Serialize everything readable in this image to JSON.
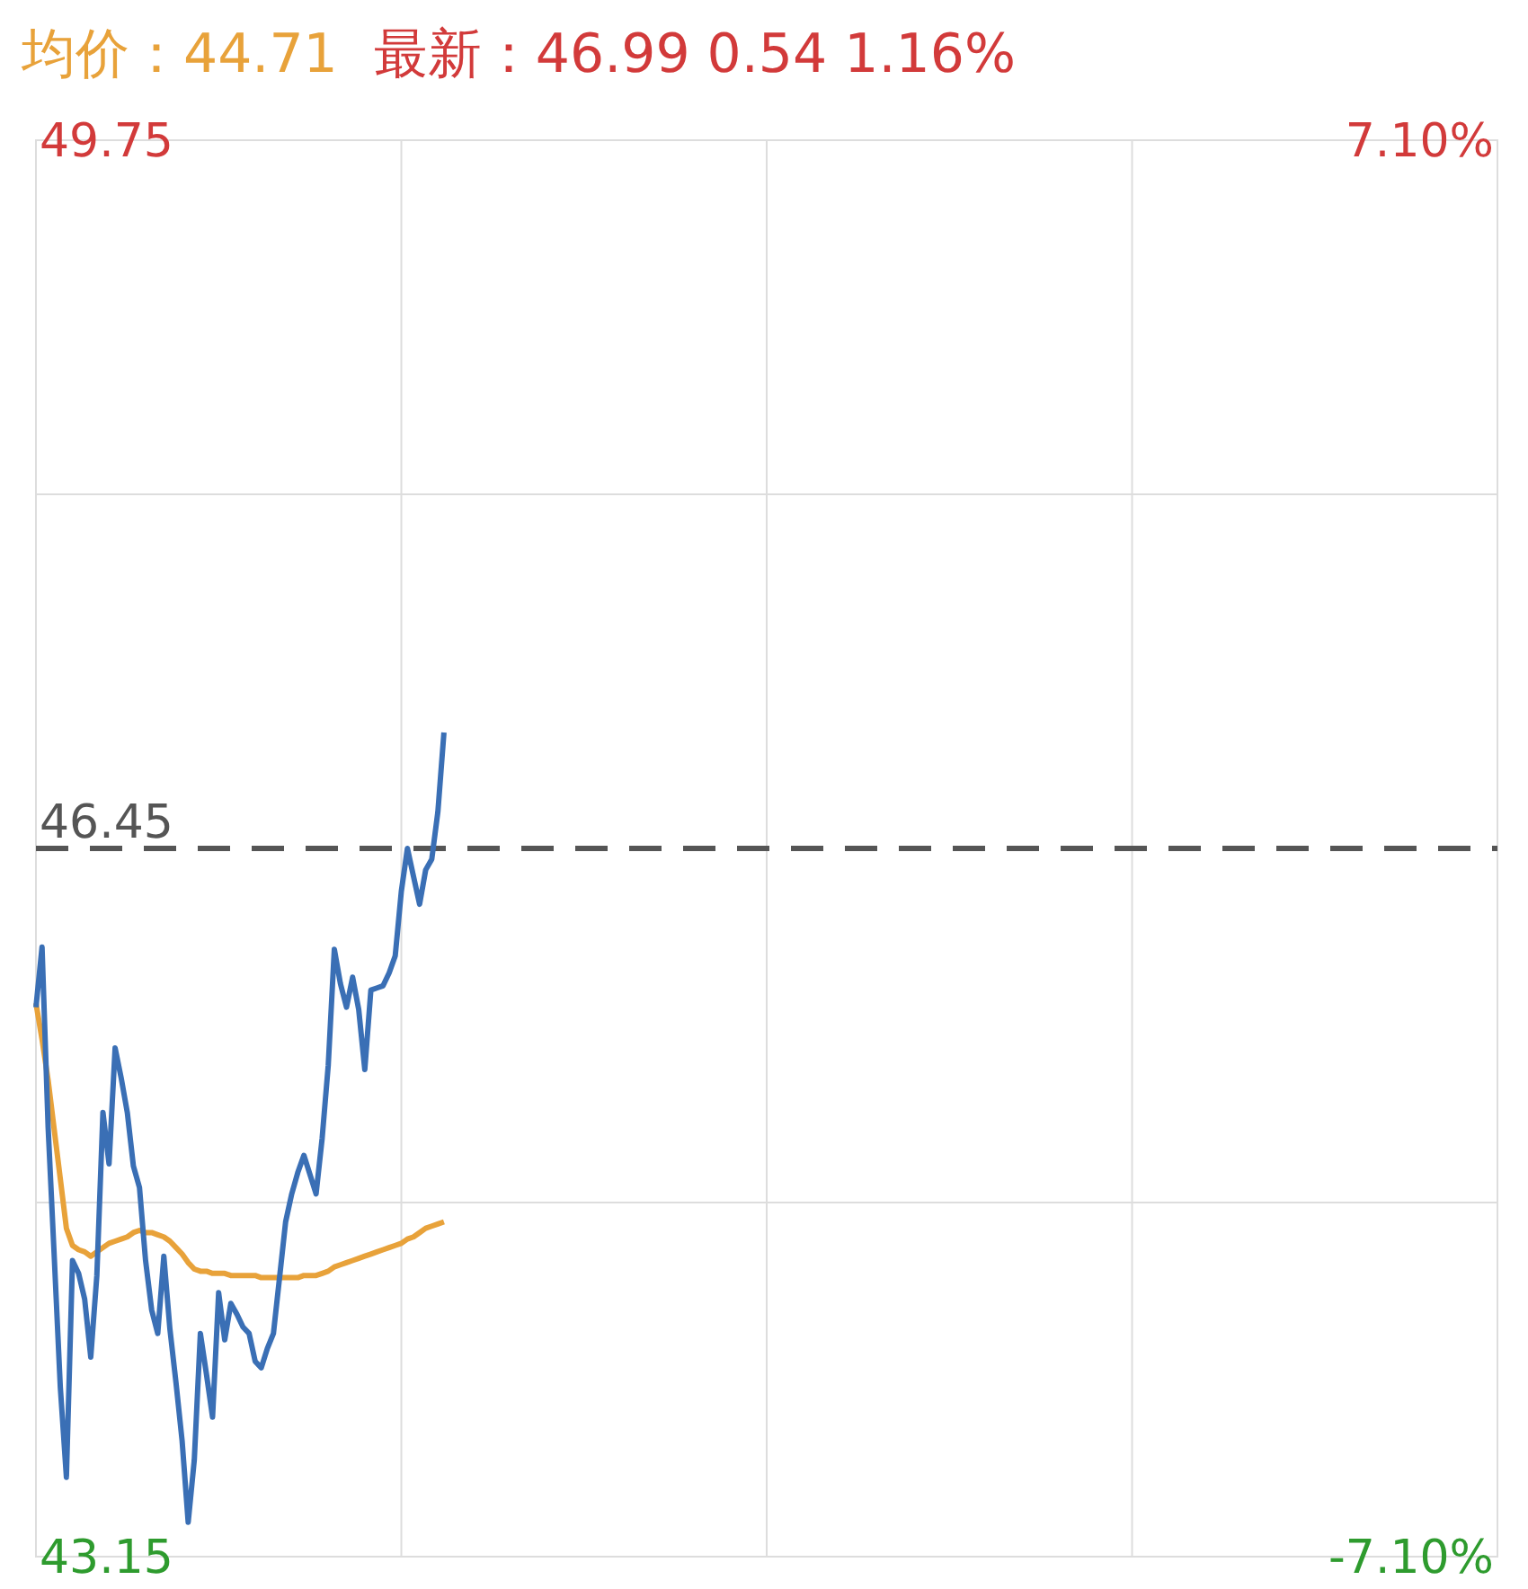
{
  "chart_data": {
    "type": "line",
    "title": "均价：44.71",
    "subtitle": "最新：46.99  0.54  1.16%",
    "categories": [
      null,
      null,
      null,
      null,
      null,
      null,
      null,
      null,
      null,
      null,
      null,
      null,
      null,
      null,
      null,
      null,
      null,
      null,
      null,
      null,
      null,
      null,
      null,
      null,
      null,
      null,
      null,
      null,
      null,
      null,
      null,
      null,
      null,
      null,
      null,
      null,
      null,
      null,
      null,
      null,
      null,
      null,
      null,
      null,
      null,
      null,
      null,
      null,
      null,
      null,
      null,
      null,
      null,
      null,
      null,
      null,
      null,
      null,
      null,
      null,
      null,
      null,
      null,
      null,
      null,
      null,
      null,
      null,
      null,
      null,
      null,
      null,
      null,
      null,
      null,
      null,
      null,
      null,
      null,
      null,
      null,
      null,
      null,
      null,
      null,
      null,
      null,
      null,
      null,
      null,
      null,
      null,
      null,
      null,
      null,
      null,
      null,
      null,
      null,
      null,
      null,
      null,
      null,
      null,
      null,
      null,
      null,
      null,
      null,
      null,
      null,
      null,
      null,
      null,
      null,
      null,
      null,
      null,
      null,
      null,
      null,
      null,
      null,
      null,
      null,
      null,
      null,
      null,
      null,
      null,
      null,
      null,
      null,
      null,
      null,
      null,
      null,
      null,
      null,
      null,
      null,
      null,
      null,
      null,
      null,
      null,
      null,
      null,
      null,
      null,
      null,
      null,
      null,
      null,
      null,
      null,
      null,
      null,
      null,
      null,
      null,
      null,
      null,
      null,
      null,
      null,
      null,
      null,
      null,
      null,
      null,
      null,
      null,
      null,
      null,
      null,
      null,
      null,
      null,
      null,
      null,
      null,
      null,
      null,
      null,
      null,
      null,
      null,
      null,
      null,
      null,
      null,
      null,
      null,
      null,
      null,
      null,
      null,
      null,
      null,
      null,
      null,
      null,
      null,
      null,
      null,
      null,
      null,
      null,
      null,
      null,
      null,
      null,
      null,
      null,
      null,
      null,
      null,
      null,
      null,
      null,
      null,
      null,
      null,
      null,
      null,
      null,
      null,
      null,
      null,
      null,
      null,
      null,
      null,
      null,
      null,
      null,
      null,
      null,
      null,
      null
    ],
    "ylim": [
      43.15,
      49.75
    ],
    "yticks": [
      43.15,
      {
        "value": 44.8,
        "label": null
      },
      {
        "value": 48.1,
        "label": null
      },
      49.75
    ],
    "y2lim": [
      -7.1,
      7.1
    ],
    "y2ticks": [
      {
        "value": -7.1,
        "label": "-7.10%"
      },
      {
        "value": 7.1,
        "label": "7.10%"
      }
    ],
    "tick_labels": "y",
    "grid": true,
    "ref_lines": [
      {
        "axis": "y",
        "value": 46.45,
        "label": "46.45",
        "color": "#555555",
        "line_style": "dashed"
      }
    ],
    "series": [
      {
        "color": "#e8a23a",
        "values": [
          45.73,
          45.56,
          45.37,
          45.14,
          44.91,
          44.68,
          44.6,
          44.58,
          44.57,
          44.55,
          44.57,
          44.59,
          44.61,
          44.62,
          44.63,
          44.64,
          44.66,
          44.67,
          44.66,
          44.66,
          44.65,
          44.64,
          44.62,
          44.59,
          44.56,
          44.52,
          44.49,
          44.48,
          44.48,
          44.47,
          44.47,
          44.47,
          44.46,
          44.46,
          44.46,
          44.46,
          44.46,
          44.45,
          44.45,
          44.45,
          44.45,
          44.45,
          44.45,
          44.45,
          44.46,
          44.46,
          44.46,
          44.47,
          44.48,
          44.5,
          44.51,
          44.52,
          44.53,
          44.54,
          44.55,
          44.56,
          44.57,
          44.58,
          44.59,
          44.6,
          44.61,
          44.63,
          44.64,
          44.66,
          44.68,
          44.69,
          44.7,
          44.71,
          null,
          null,
          null,
          null,
          null,
          null,
          null,
          null,
          null,
          null,
          null,
          null,
          null,
          null,
          null,
          null,
          null,
          null,
          null,
          null,
          null,
          null,
          null,
          null,
          null,
          null,
          null,
          null,
          null,
          null,
          null,
          null,
          null,
          null,
          null,
          null,
          null,
          null,
          null,
          null,
          null,
          null,
          null,
          null,
          null,
          null,
          null,
          null,
          null,
          null,
          null,
          null,
          null,
          null,
          null,
          null,
          null,
          null,
          null,
          null,
          null,
          null,
          null,
          null,
          null,
          null,
          null,
          null,
          null,
          null,
          null,
          null,
          null,
          null,
          null,
          null,
          null,
          null,
          null,
          null,
          null,
          null,
          null,
          null,
          null,
          null,
          null,
          null,
          null,
          null,
          null,
          null,
          null,
          null,
          null,
          null,
          null,
          null,
          null,
          null,
          null,
          null,
          null,
          null,
          null,
          null,
          null,
          null,
          null,
          null,
          null,
          null,
          null,
          null,
          null,
          null,
          null,
          null,
          null,
          null,
          null,
          null,
          null,
          null,
          null,
          null,
          null,
          null,
          null,
          null,
          null,
          null,
          null,
          null,
          null,
          null,
          null,
          null,
          null,
          null,
          null,
          null,
          null,
          null,
          null,
          null,
          null,
          null,
          null,
          null,
          null,
          null,
          null,
          null,
          null,
          null,
          null,
          null,
          null,
          null,
          null,
          null,
          null,
          null,
          null,
          null,
          null,
          null,
          null,
          null,
          null,
          null,
          null
        ]
      },
      {
        "color": "#3a6fb5",
        "values": [
          45.71,
          45.99,
          45.15,
          44.55,
          43.94,
          43.52,
          44.53,
          44.47,
          44.35,
          44.08,
          44.46,
          45.22,
          44.98,
          45.52,
          45.38,
          45.22,
          44.97,
          44.87,
          44.53,
          44.3,
          44.19,
          44.55,
          44.21,
          43.96,
          43.69,
          43.31,
          43.6,
          44.19,
          44.0,
          43.8,
          44.38,
          44.16,
          44.33,
          44.28,
          44.22,
          44.19,
          44.06,
          44.03,
          44.12,
          44.19,
          44.45,
          44.71,
          44.84,
          44.94,
          45.02,
          44.93,
          44.84,
          45.1,
          45.44,
          45.98,
          45.82,
          45.71,
          45.85,
          45.7,
          45.42,
          45.79,
          45.8,
          45.81,
          45.87,
          45.95,
          46.25,
          46.45,
          46.32,
          46.19,
          46.35,
          46.4,
          46.62,
          46.99,
          null,
          null,
          null,
          null,
          null,
          null,
          null,
          null,
          null,
          null,
          null,
          null,
          null,
          null,
          null,
          null,
          null,
          null,
          null,
          null,
          null,
          null,
          null,
          null,
          null,
          null,
          null,
          null,
          null,
          null,
          null,
          null,
          null,
          null,
          null,
          null,
          null,
          null,
          null,
          null,
          null,
          null,
          null,
          null,
          null,
          null,
          null,
          null,
          null,
          null,
          null,
          null,
          null,
          null,
          null,
          null,
          null,
          null,
          null,
          null,
          null,
          null,
          null,
          null,
          null,
          null,
          null,
          null,
          null,
          null,
          null,
          null,
          null,
          null,
          null,
          null,
          null,
          null,
          null,
          null,
          null,
          null,
          null,
          null,
          null,
          null,
          null,
          null,
          null,
          null,
          null,
          null,
          null,
          null,
          null,
          null,
          null,
          null,
          null,
          null,
          null,
          null,
          null,
          null,
          null,
          null,
          null,
          null,
          null,
          null,
          null,
          null,
          null,
          null,
          null,
          null,
          null,
          null,
          null,
          null,
          null,
          null,
          null,
          null,
          null,
          null,
          null,
          null,
          null,
          null,
          null,
          null,
          null,
          null,
          null,
          null,
          null,
          null,
          null,
          null,
          null,
          null,
          null,
          null,
          null,
          null,
          null,
          null,
          null,
          null,
          null,
          null,
          null,
          null,
          null,
          null,
          null,
          null,
          null,
          null,
          null,
          null,
          null,
          null,
          null,
          null,
          null,
          null,
          null,
          null,
          null,
          null,
          null
        ]
      }
    ]
  }
}
